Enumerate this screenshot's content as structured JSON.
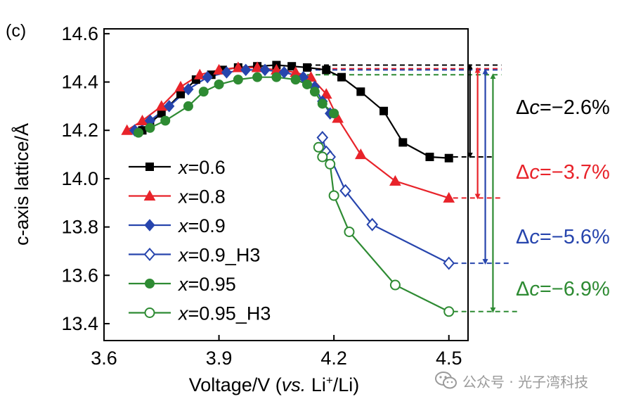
{
  "chart_data": {
    "type": "line",
    "panel_label": "(c)",
    "title": "",
    "xlabel": "Voltage/V (vs. Li⁺/Li)",
    "xlabel_parts": [
      "Voltage/V (",
      "vs.",
      " Li",
      "+",
      "/Li)"
    ],
    "ylabel": "c-axis lattice/Å",
    "xlim": [
      3.6,
      4.55
    ],
    "ylim": [
      13.33,
      14.62
    ],
    "xticks": [
      "3.6",
      "3.9",
      "4.2",
      "4.5"
    ],
    "yticks": [
      "13.4",
      "13.6",
      "13.8",
      "14.0",
      "14.2",
      "14.4",
      "14.6"
    ],
    "legend_position": "left",
    "series": [
      {
        "name": "x=0.6",
        "legend_prefix": "x",
        "legend_suffix": "=0.6",
        "color": "#000000",
        "marker": "square",
        "filled": true,
        "points": [
          [
            3.7,
            14.2
          ],
          [
            3.72,
            14.23
          ],
          [
            3.75,
            14.27
          ],
          [
            3.8,
            14.35
          ],
          [
            3.84,
            14.41
          ],
          [
            3.88,
            14.43
          ],
          [
            3.91,
            14.45
          ],
          [
            3.95,
            14.46
          ],
          [
            4.0,
            14.465
          ],
          [
            4.05,
            14.47
          ],
          [
            4.09,
            14.465
          ],
          [
            4.13,
            14.46
          ],
          [
            4.18,
            14.45
          ],
          [
            4.22,
            14.42
          ],
          [
            4.27,
            14.36
          ],
          [
            4.33,
            14.28
          ],
          [
            4.38,
            14.15
          ],
          [
            4.45,
            14.09
          ],
          [
            4.5,
            14.085
          ]
        ]
      },
      {
        "name": "x=0.8",
        "legend_prefix": "x",
        "legend_suffix": "=0.8",
        "color": "#e8232a",
        "marker": "triangle",
        "filled": true,
        "points": [
          [
            3.66,
            14.2
          ],
          [
            3.7,
            14.24
          ],
          [
            3.75,
            14.3
          ],
          [
            3.8,
            14.38
          ],
          [
            3.85,
            14.43
          ],
          [
            3.9,
            14.45
          ],
          [
            3.95,
            14.46
          ],
          [
            4.0,
            14.46
          ],
          [
            4.05,
            14.45
          ],
          [
            4.1,
            14.44
          ],
          [
            4.14,
            14.42
          ],
          [
            4.18,
            14.35
          ],
          [
            4.21,
            14.25
          ],
          [
            4.27,
            14.1
          ],
          [
            4.36,
            13.99
          ],
          [
            4.5,
            13.92
          ]
        ]
      },
      {
        "name": "x=0.9",
        "legend_prefix": "x",
        "legend_suffix": "=0.9",
        "color": "#2745ad",
        "marker": "diamond",
        "filled": true,
        "points": [
          [
            3.68,
            14.2
          ],
          [
            3.72,
            14.24
          ],
          [
            3.77,
            14.3
          ],
          [
            3.82,
            14.37
          ],
          [
            3.87,
            14.42
          ],
          [
            3.92,
            14.44
          ],
          [
            3.97,
            14.45
          ],
          [
            4.02,
            14.45
          ],
          [
            4.07,
            14.44
          ],
          [
            4.12,
            14.42
          ],
          [
            4.15,
            14.38
          ],
          [
            4.17,
            14.32
          ],
          [
            4.19,
            14.27
          ]
        ]
      },
      {
        "name": "x=0.9_H3",
        "legend_prefix": "x",
        "legend_suffix": "=0.9_H3",
        "color": "#2745ad",
        "marker": "diamond",
        "filled": false,
        "points": [
          [
            4.17,
            14.17
          ],
          [
            4.18,
            14.11
          ],
          [
            4.19,
            14.09
          ],
          [
            4.23,
            13.95
          ],
          [
            4.3,
            13.81
          ],
          [
            4.5,
            13.65
          ]
        ]
      },
      {
        "name": "x=0.95",
        "legend_prefix": "x",
        "legend_suffix": "=0.95",
        "color": "#2e8b33",
        "marker": "circle",
        "filled": true,
        "points": [
          [
            3.69,
            14.19
          ],
          [
            3.72,
            14.21
          ],
          [
            3.76,
            14.24
          ],
          [
            3.82,
            14.3
          ],
          [
            3.86,
            14.36
          ],
          [
            3.9,
            14.39
          ],
          [
            3.95,
            14.41
          ],
          [
            4.0,
            14.42
          ],
          [
            4.05,
            14.42
          ],
          [
            4.1,
            14.41
          ],
          [
            4.13,
            14.39
          ],
          [
            4.15,
            14.36
          ],
          [
            4.17,
            14.31
          ],
          [
            4.2,
            14.27
          ]
        ]
      },
      {
        "name": "x=0.95_H3",
        "legend_prefix": "x",
        "legend_suffix": "=0.95_H3",
        "color": "#2e8b33",
        "marker": "circle",
        "filled": false,
        "points": [
          [
            4.16,
            14.13
          ],
          [
            4.17,
            14.09
          ],
          [
            4.19,
            14.06
          ],
          [
            4.2,
            13.93
          ],
          [
            4.24,
            13.78
          ],
          [
            4.36,
            13.56
          ],
          [
            4.5,
            13.45
          ]
        ]
      }
    ],
    "annotations": [
      {
        "label": "Δc=−2.6%",
        "prefix": "Δ",
        "italic": "c",
        "suffix": "=−2.6%",
        "color": "#000000",
        "top": 14.47,
        "bottom": 14.09,
        "arrow_x": 4.555
      },
      {
        "label": "Δc=−3.7%",
        "prefix": "Δ",
        "italic": "c",
        "suffix": "=−3.7%",
        "color": "#e8232a",
        "top": 14.455,
        "bottom": 13.92,
        "arrow_x": 4.575
      },
      {
        "label": "Δc=−5.6%",
        "prefix": "Δ",
        "italic": "c",
        "suffix": "=−5.6%",
        "color": "#2745ad",
        "top": 14.45,
        "bottom": 13.65,
        "arrow_x": 4.595
      },
      {
        "label": "Δc=−6.9%",
        "prefix": "Δ",
        "italic": "c",
        "suffix": "=−6.9%",
        "color": "#2e8b33",
        "top": 14.43,
        "bottom": 13.45,
        "arrow_x": 4.615
      }
    ]
  },
  "watermark": {
    "icon": "wechat-icon",
    "text": "公众号 · 光子湾科技"
  }
}
